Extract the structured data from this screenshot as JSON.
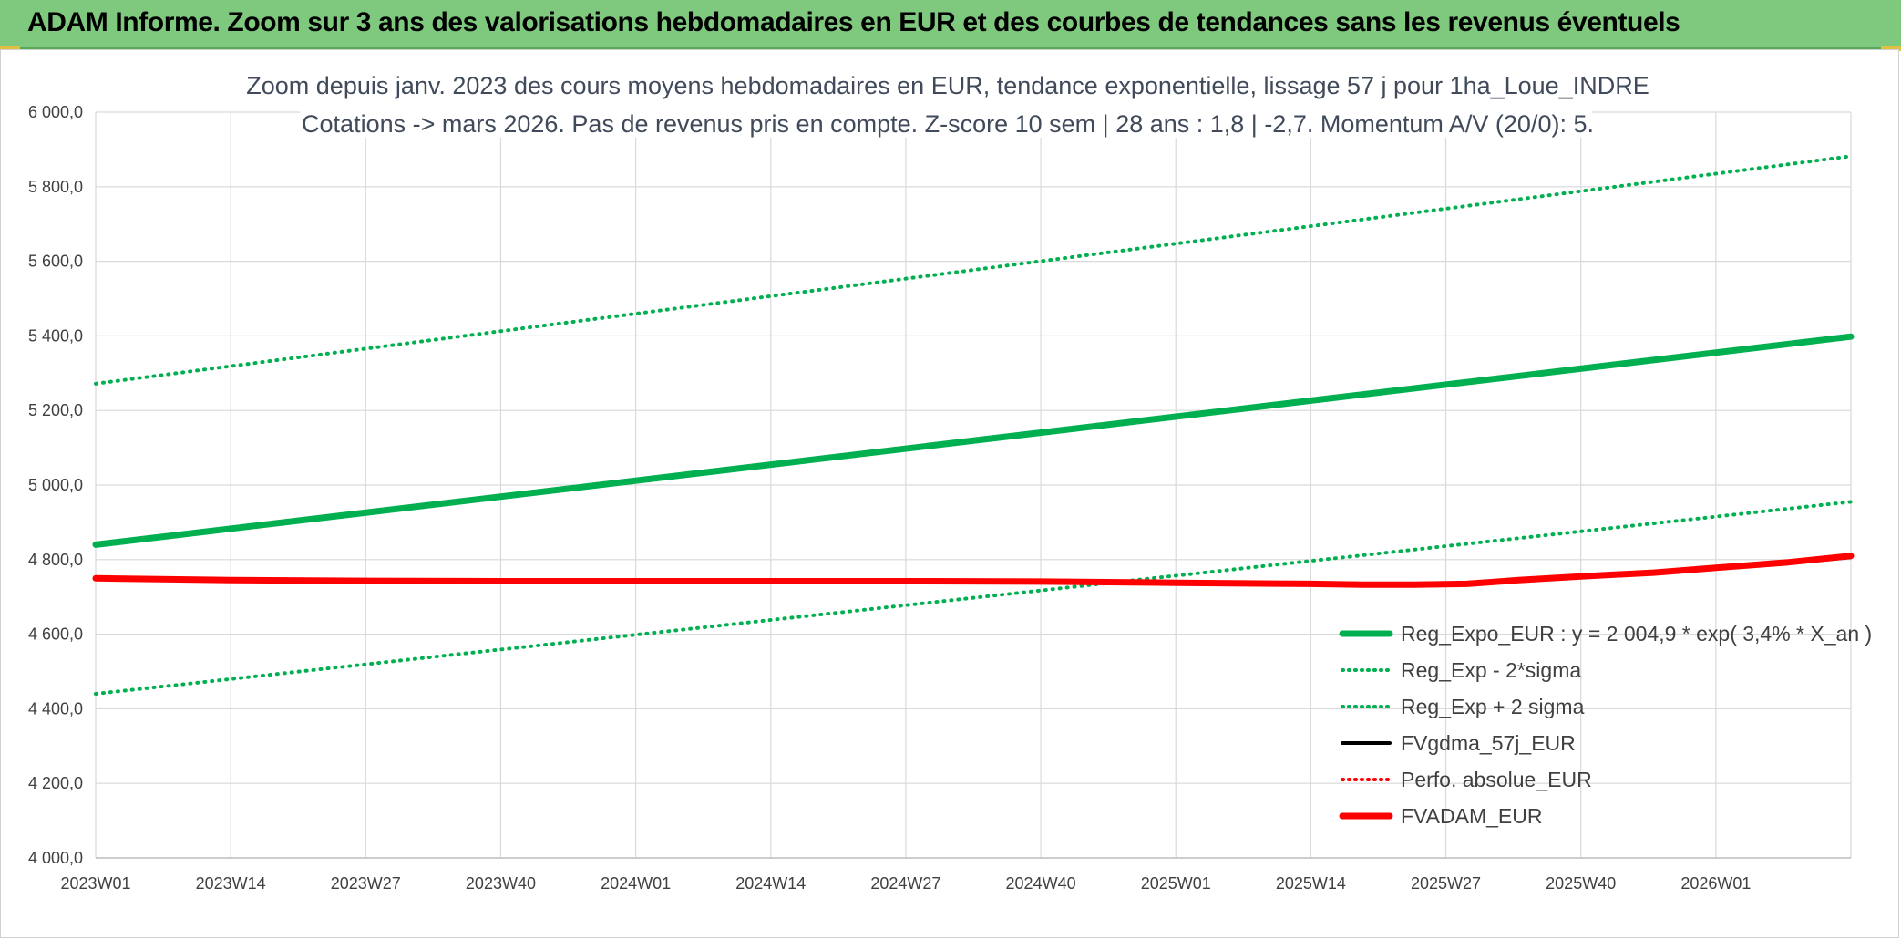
{
  "header": {
    "title": "ADAM Informe. Zoom sur 3 ans des valorisations hebdomadaires en EUR et des courbes de tendances sans les revenus éventuels"
  },
  "chart_data": {
    "type": "line",
    "title_lines": [
      "Zoom depuis janv. 2023 des cours moyens hebdomadaires en EUR, tendance exponentielle, lissage 57 j pour 1ha_Loue_INDRE",
      "Cotations -> mars 2026. Pas de revenus pris en compte. Z-score 10 sem | 28 ans : 1,8 | -2,7. Momentum A/V (20/0): 5."
    ],
    "x_tick_labels": [
      "2023W01",
      "2023W14",
      "2023W27",
      "2023W40",
      "2024W01",
      "2024W14",
      "2024W27",
      "2024W40",
      "2025W01",
      "2025W14",
      "2025W27",
      "2025W40",
      "2026W01"
    ],
    "x_range_weeks": [
      0,
      169
    ],
    "ylim": [
      4000,
      6000
    ],
    "y_tick_labels": [
      "4 000,0",
      "4 200,0",
      "4 400,0",
      "4 600,0",
      "4 800,0",
      "5 000,0",
      "5 200,0",
      "5 400,0",
      "5 600,0",
      "5 800,0",
      "6 000,0"
    ],
    "y_ticks": [
      4000,
      4200,
      4400,
      4600,
      4800,
      5000,
      5200,
      5400,
      5600,
      5800,
      6000
    ],
    "grid": true,
    "legend_position": "bottom-right",
    "series": [
      {
        "name": "Reg_Expo_EUR : y = 2 004,9 * exp( 3,4% *  X_an )",
        "color": "#00b050",
        "style": "solid-thick",
        "x": [
          0,
          169
        ],
        "y": [
          4840,
          5398
        ]
      },
      {
        "name": "Reg_Exp - 2*sigma",
        "color": "#00b050",
        "style": "dotted",
        "x": [
          0,
          169
        ],
        "y": [
          4440,
          4955
        ]
      },
      {
        "name": "Reg_Exp + 2 sigma",
        "color": "#00b050",
        "style": "dotted",
        "x": [
          0,
          169
        ],
        "y": [
          5272,
          5882
        ]
      },
      {
        "name": "FVgdma_57j_EUR",
        "color": "#000000",
        "style": "solid",
        "x": [
          0,
          13,
          26,
          39,
          52,
          65,
          78,
          91,
          104,
          117,
          122,
          127,
          132,
          137,
          143,
          150,
          156,
          163,
          169
        ],
        "y": [
          4750,
          4745,
          4743,
          4742,
          4742,
          4742,
          4742,
          4741,
          4738,
          4735,
          4735,
          4736,
          4738,
          4745,
          4752,
          4762,
          4775,
          4790,
          4806
        ]
      },
      {
        "name": "Perfo. absolue_EUR",
        "color": "#ff0000",
        "style": "dotted",
        "x": [],
        "y": []
      },
      {
        "name": "FVADAM_EUR",
        "color": "#ff0000",
        "style": "solid-thick",
        "x": [
          0,
          13,
          26,
          39,
          52,
          65,
          78,
          91,
          104,
          117,
          122,
          127,
          132,
          137,
          143,
          150,
          156,
          163,
          169
        ],
        "y": [
          4750,
          4745,
          4743,
          4742,
          4742,
          4742,
          4742,
          4741,
          4738,
          4735,
          4733,
          4733,
          4735,
          4745,
          4755,
          4765,
          4778,
          4793,
          4810
        ]
      }
    ]
  }
}
